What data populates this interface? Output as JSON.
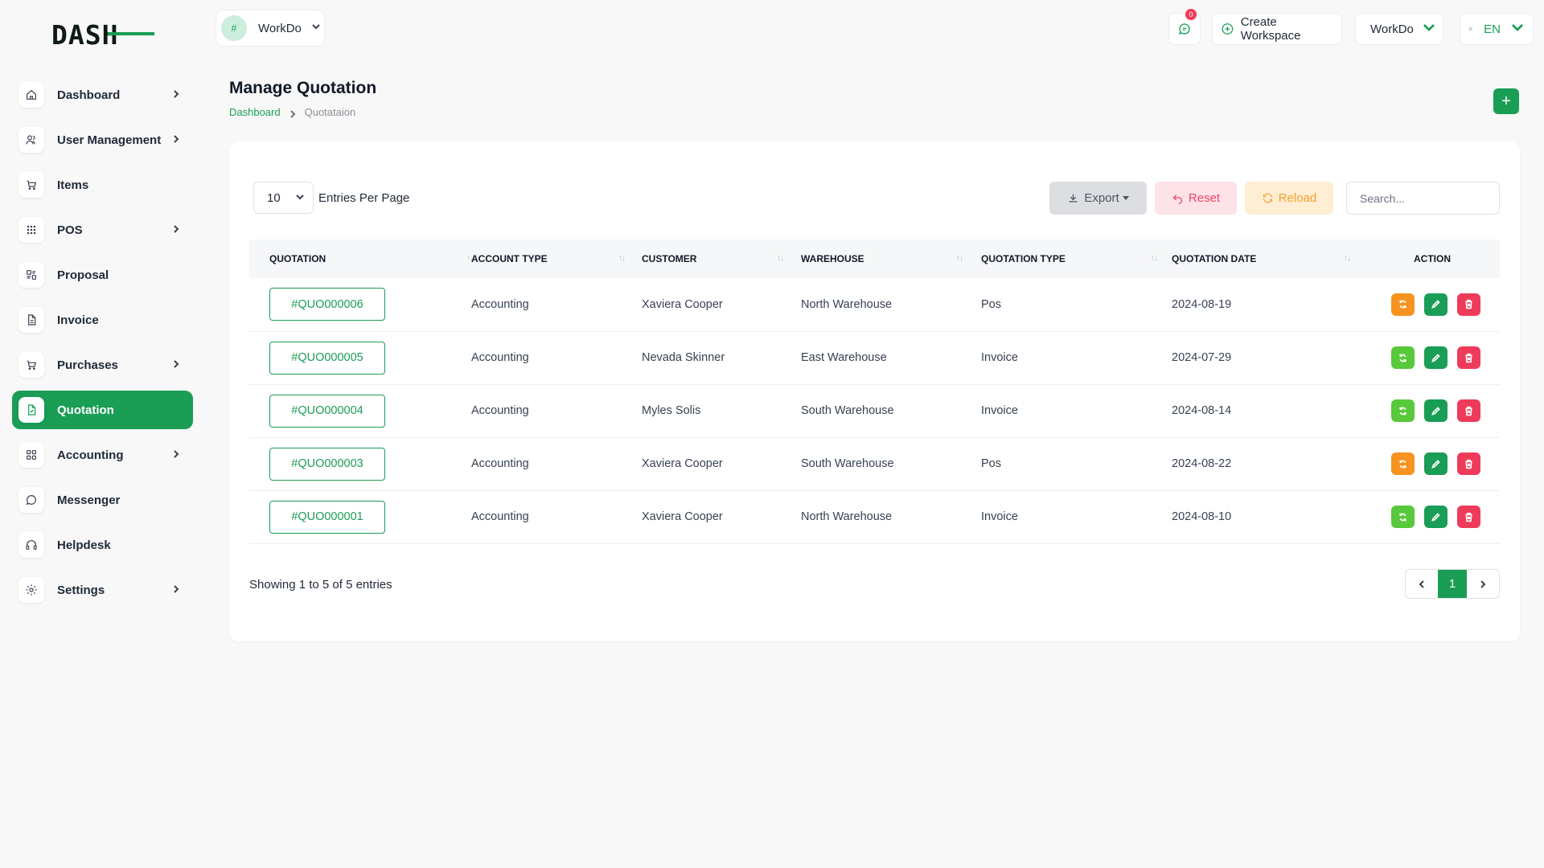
{
  "logo": {
    "text_main": "DASH",
    "text_accent": ""
  },
  "sidebar": {
    "items": [
      {
        "label": "Dashboard",
        "icon": "home-icon",
        "has_submenu": true
      },
      {
        "label": "User Management",
        "icon": "users-icon",
        "has_submenu": true
      },
      {
        "label": "Items",
        "icon": "cart-icon",
        "has_submenu": false
      },
      {
        "label": "POS",
        "icon": "grid-dots-icon",
        "has_submenu": true
      },
      {
        "label": "Proposal",
        "icon": "proposal-icon",
        "has_submenu": false
      },
      {
        "label": "Invoice",
        "icon": "file-icon",
        "has_submenu": false
      },
      {
        "label": "Purchases",
        "icon": "cart-icon",
        "has_submenu": true
      },
      {
        "label": "Quotation",
        "icon": "file-check-icon",
        "has_submenu": false,
        "active": true
      },
      {
        "label": "Accounting",
        "icon": "layout-grid-icon",
        "has_submenu": true
      },
      {
        "label": "Messenger",
        "icon": "chat-icon",
        "has_submenu": false
      },
      {
        "label": "Helpdesk",
        "icon": "headset-icon",
        "has_submenu": false
      },
      {
        "label": "Settings",
        "icon": "gear-icon",
        "has_submenu": true
      }
    ]
  },
  "header": {
    "workspace": {
      "avatar_text": "#",
      "name": "WorkDo"
    },
    "notifications_count": "0",
    "create_workspace_label": "Create Workspace",
    "workspace_menu_label": "WorkDo",
    "language": "EN"
  },
  "page": {
    "title": "Manage Quotation",
    "breadcrumb": {
      "home": "Dashboard",
      "current": "Quotataion"
    },
    "add_label": "+"
  },
  "toolbar": {
    "entries_value": "10",
    "entries_label": "Entries Per Page",
    "export_label": "Export",
    "reset_label": "Reset",
    "reload_label": "Reload",
    "search_placeholder": "Search..."
  },
  "table": {
    "columns": [
      "QUOTATION",
      "ACCOUNT TYPE",
      "CUSTOMER",
      "WAREHOUSE",
      "QUOTATION TYPE",
      "QUOTATION DATE",
      "ACTION"
    ],
    "rows": [
      {
        "id": "#QUO000006",
        "account_type": "Accounting",
        "customer": "Xaviera Cooper",
        "warehouse": "North Warehouse",
        "type": "Pos",
        "date": "2024-08-19",
        "convert_color": "#f7931e"
      },
      {
        "id": "#QUO000005",
        "account_type": "Accounting",
        "customer": "Nevada Skinner",
        "warehouse": "East Warehouse",
        "type": "Invoice",
        "date": "2024-07-29",
        "convert_color": "#58c83c"
      },
      {
        "id": "#QUO000004",
        "account_type": "Accounting",
        "customer": "Myles Solis",
        "warehouse": "South Warehouse",
        "type": "Invoice",
        "date": "2024-08-14",
        "convert_color": "#58c83c"
      },
      {
        "id": "#QUO000003",
        "account_type": "Accounting",
        "customer": "Xaviera Cooper",
        "warehouse": "South Warehouse",
        "type": "Pos",
        "date": "2024-08-22",
        "convert_color": "#f7931e"
      },
      {
        "id": "#QUO000001",
        "account_type": "Accounting",
        "customer": "Xaviera Cooper",
        "warehouse": "North Warehouse",
        "type": "Invoice",
        "date": "2024-08-10",
        "convert_color": "#58c83c"
      }
    ]
  },
  "footer": {
    "showing_text": "Showing 1 to 5 of 5 entries",
    "current_page": "1"
  },
  "colors": {
    "brand": "#1a9d55",
    "danger": "#ef3b5a",
    "warning": "#f7931e"
  }
}
